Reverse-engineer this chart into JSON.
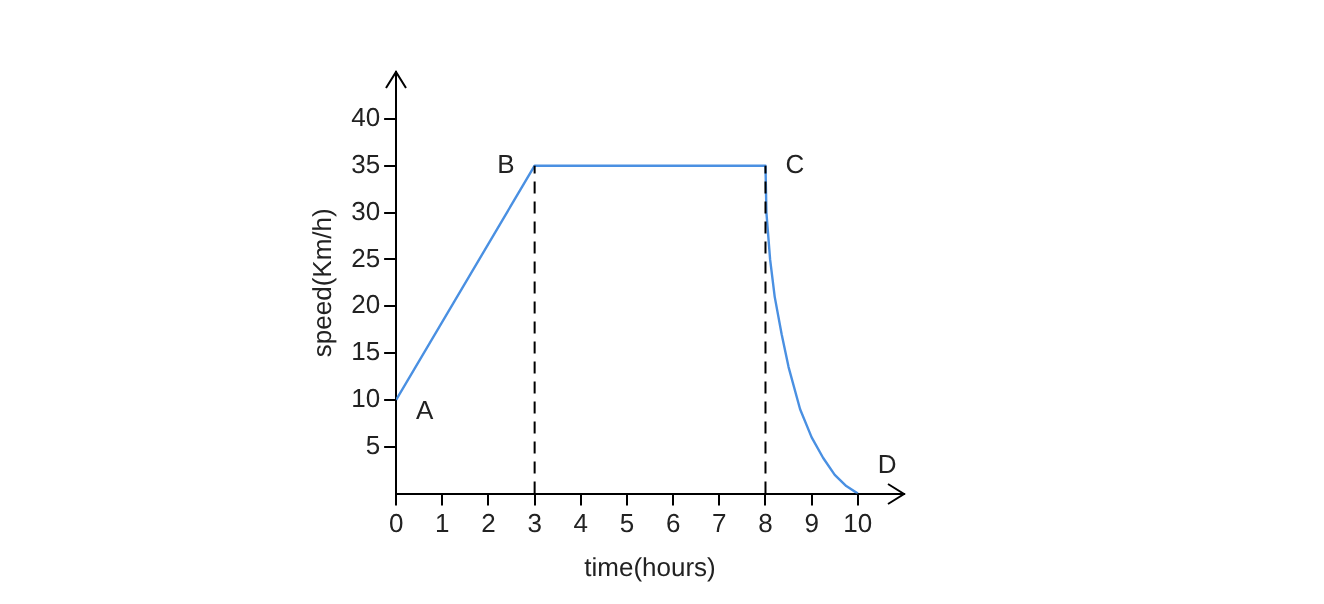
{
  "chart_data": {
    "type": "line",
    "xlabel": "time(hours)",
    "ylabel": "speed(Km/h)",
    "x": [
      0,
      3,
      8,
      8.02,
      8.1,
      8.2,
      8.35,
      8.5,
      8.75,
      9,
      9.25,
      9.5,
      9.75,
      10
    ],
    "series": [
      {
        "color": "#4a90e2",
        "values": [
          10,
          35,
          35,
          30,
          25,
          21,
          17,
          13.5,
          9,
          6,
          3.8,
          2,
          0.8,
          0
        ]
      }
    ],
    "xlim": [
      0,
      11
    ],
    "ylim": [
      0,
      45
    ],
    "xticks": [
      0,
      1,
      2,
      3,
      4,
      5,
      6,
      7,
      8,
      9,
      10
    ],
    "yticks": [
      5,
      10,
      15,
      20,
      25,
      30,
      35,
      40
    ],
    "ref_lines": [
      {
        "axis": "x",
        "value": 3,
        "color": "#000000",
        "line_style": "dashed"
      },
      {
        "axis": "x",
        "value": 8,
        "color": "#000000",
        "line_style": "dashed"
      }
    ],
    "annotations": [
      {
        "text": "A",
        "x": 0,
        "y": 10
      },
      {
        "text": "B",
        "x": 3,
        "y": 35
      },
      {
        "text": "C",
        "x": 8,
        "y": 35
      },
      {
        "text": "D",
        "x": 10,
        "y": 0
      }
    ],
    "grid": false,
    "legend": false,
    "marker": "none",
    "line_style": "solid"
  }
}
